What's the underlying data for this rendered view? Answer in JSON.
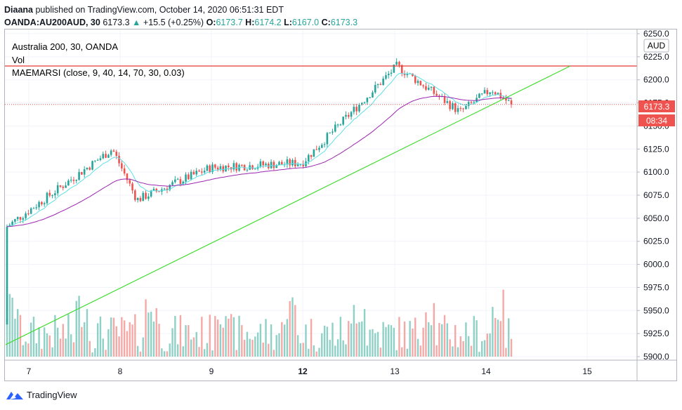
{
  "header": {
    "author": "Diaana",
    "published_text": "published on TradingView.com, October 14, 2020 06:51:31 EDT",
    "symbol": "OANDA:AU200AUD, 30",
    "last": "6173.3",
    "change_arrow": "▲",
    "change": "+15.5 (+0.25%)",
    "o_label": "O:",
    "o": "6173.7",
    "h_label": "H:",
    "h": "6174.2",
    "l_label": "L:",
    "l": "6167.0",
    "c_label": "C:",
    "c": "6173.3"
  },
  "legend": {
    "title": "Australia 200, 30, OANDA",
    "vol": "Vol",
    "indicator": "MAEMARSI (close, 9, 40, 14, 70, 30, 0.03)"
  },
  "price_axis": {
    "currency": "AUD",
    "ticks": [
      "6250.0",
      "6225.0",
      "6200.0",
      "6175.0",
      "6150.0",
      "6125.0",
      "6100.0",
      "6075.0",
      "6050.0",
      "6025.0",
      "6000.0",
      "5975.0",
      "5950.0",
      "5925.0",
      "5900.0"
    ],
    "current_price": "6173.3",
    "countdown": "08:34"
  },
  "time_axis": {
    "labels": [
      "7",
      "8",
      "9",
      "12",
      "13",
      "14",
      "15"
    ]
  },
  "colors": {
    "up": "#26a69a",
    "down": "#ef5350",
    "fast_ma": "#5ce1e6",
    "slow_ma": "#9c27b0",
    "resistance": "#e53935",
    "trendline": "#44dd33",
    "vol_up": "#8fd1c6",
    "vol_down": "#f4a9a7"
  },
  "footer": {
    "brand": "TradingView",
    "logo_icon": "tradingview-logo-icon"
  },
  "chart_data": {
    "type": "candlestick",
    "timeframe": "30",
    "ylim": [
      5900,
      6250
    ],
    "y_ticks": [
      5900,
      5925,
      5950,
      5975,
      6000,
      6025,
      6050,
      6075,
      6100,
      6125,
      6150,
      6175,
      6200,
      6225,
      6250
    ],
    "x_labels": [
      "7",
      "8",
      "9",
      "12",
      "13",
      "14",
      "15"
    ],
    "last_close": 6173.3,
    "resistance_level": 6215,
    "trendline": {
      "from": {
        "x": "7",
        "y": 5913
      },
      "to": {
        "x": "14",
        "y": 6215
      }
    },
    "close_path": [
      {
        "x": "7",
        "y": 6040
      },
      {
        "x": "8",
        "y": 6125
      },
      {
        "x": "8",
        "y": 6070
      },
      {
        "x": "9",
        "y": 6105
      },
      {
        "x": "12",
        "y": 6110
      },
      {
        "x": "13",
        "y": 6215
      },
      {
        "x": "13",
        "y": 6165
      },
      {
        "x": "14",
        "y": 6190
      },
      {
        "x": "14",
        "y": 6173.3
      }
    ]
  }
}
